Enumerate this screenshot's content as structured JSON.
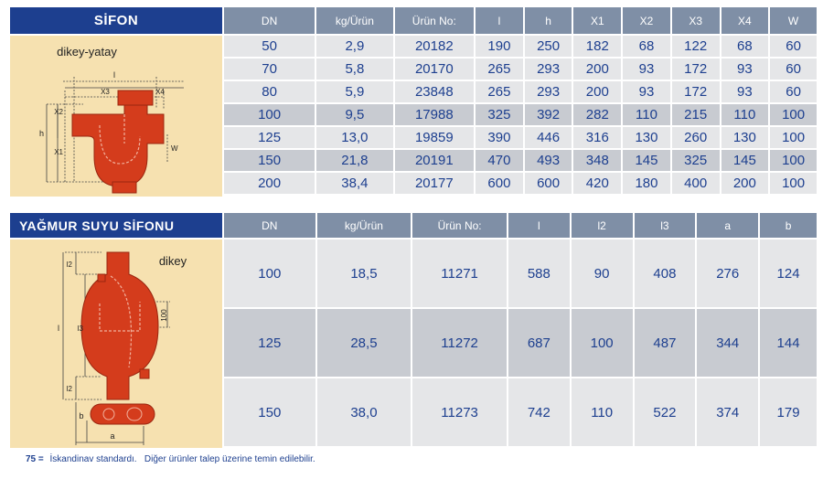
{
  "sifon": {
    "title": "SİFON",
    "caption": "dikey-yatay",
    "dims": {
      "l": "l",
      "x3": "X3",
      "x4": "X4",
      "x2": "X2",
      "x1": "X1",
      "h": "h",
      "w": "W"
    },
    "headers": [
      "DN",
      "kg/Ürün",
      "Ürün No:",
      "l",
      "h",
      "X1",
      "X2",
      "X3",
      "X4",
      "W"
    ],
    "rows": [
      [
        "50",
        "2,9",
        "20182",
        "190",
        "250",
        "182",
        "68",
        "122",
        "68",
        "60"
      ],
      [
        "70",
        "5,8",
        "20170",
        "265",
        "293",
        "200",
        "93",
        "172",
        "93",
        "60"
      ],
      [
        "80",
        "5,9",
        "23848",
        "265",
        "293",
        "200",
        "93",
        "172",
        "93",
        "60"
      ],
      [
        "100",
        "9,5",
        "17988",
        "325",
        "392",
        "282",
        "110",
        "215",
        "110",
        "100"
      ],
      [
        "125",
        "13,0",
        "19859",
        "390",
        "446",
        "316",
        "130",
        "260",
        "130",
        "100"
      ],
      [
        "150",
        "21,8",
        "20191",
        "470",
        "493",
        "348",
        "145",
        "325",
        "145",
        "100"
      ],
      [
        "200",
        "38,4",
        "20177",
        "600",
        "600",
        "420",
        "180",
        "400",
        "200",
        "100"
      ]
    ]
  },
  "yagmur": {
    "title": "YAĞMUR SUYU SİFONU",
    "caption": "dikey",
    "dims": {
      "l": "l",
      "l2top": "l2",
      "l2bot": "l2",
      "l3": "l3",
      "d100": "100",
      "a": "a",
      "b": "b"
    },
    "headers": [
      "DN",
      "kg/Ürün",
      "Ürün No:",
      "l",
      "l2",
      "l3",
      "a",
      "b"
    ],
    "rows": [
      [
        "100",
        "18,5",
        "11271",
        "588",
        "90",
        "408",
        "276",
        "124"
      ],
      [
        "125",
        "28,5",
        "11272",
        "687",
        "100",
        "487",
        "344",
        "144"
      ],
      [
        "150",
        "38,0",
        "11273",
        "742",
        "110",
        "522",
        "374",
        "179"
      ]
    ]
  },
  "footnote": {
    "mark": "75 =",
    "text": "İskandinav standardı.   Diğer ürünler talep üzerine temin edilebilir."
  },
  "colors": {
    "navy": "#1d3f8f",
    "header_gray": "#7f8fa6",
    "row_light": "#e5e6e8",
    "row_dark": "#c8cbd1",
    "panel": "#f6e1b0",
    "pipe_red": "#d43c1c"
  }
}
